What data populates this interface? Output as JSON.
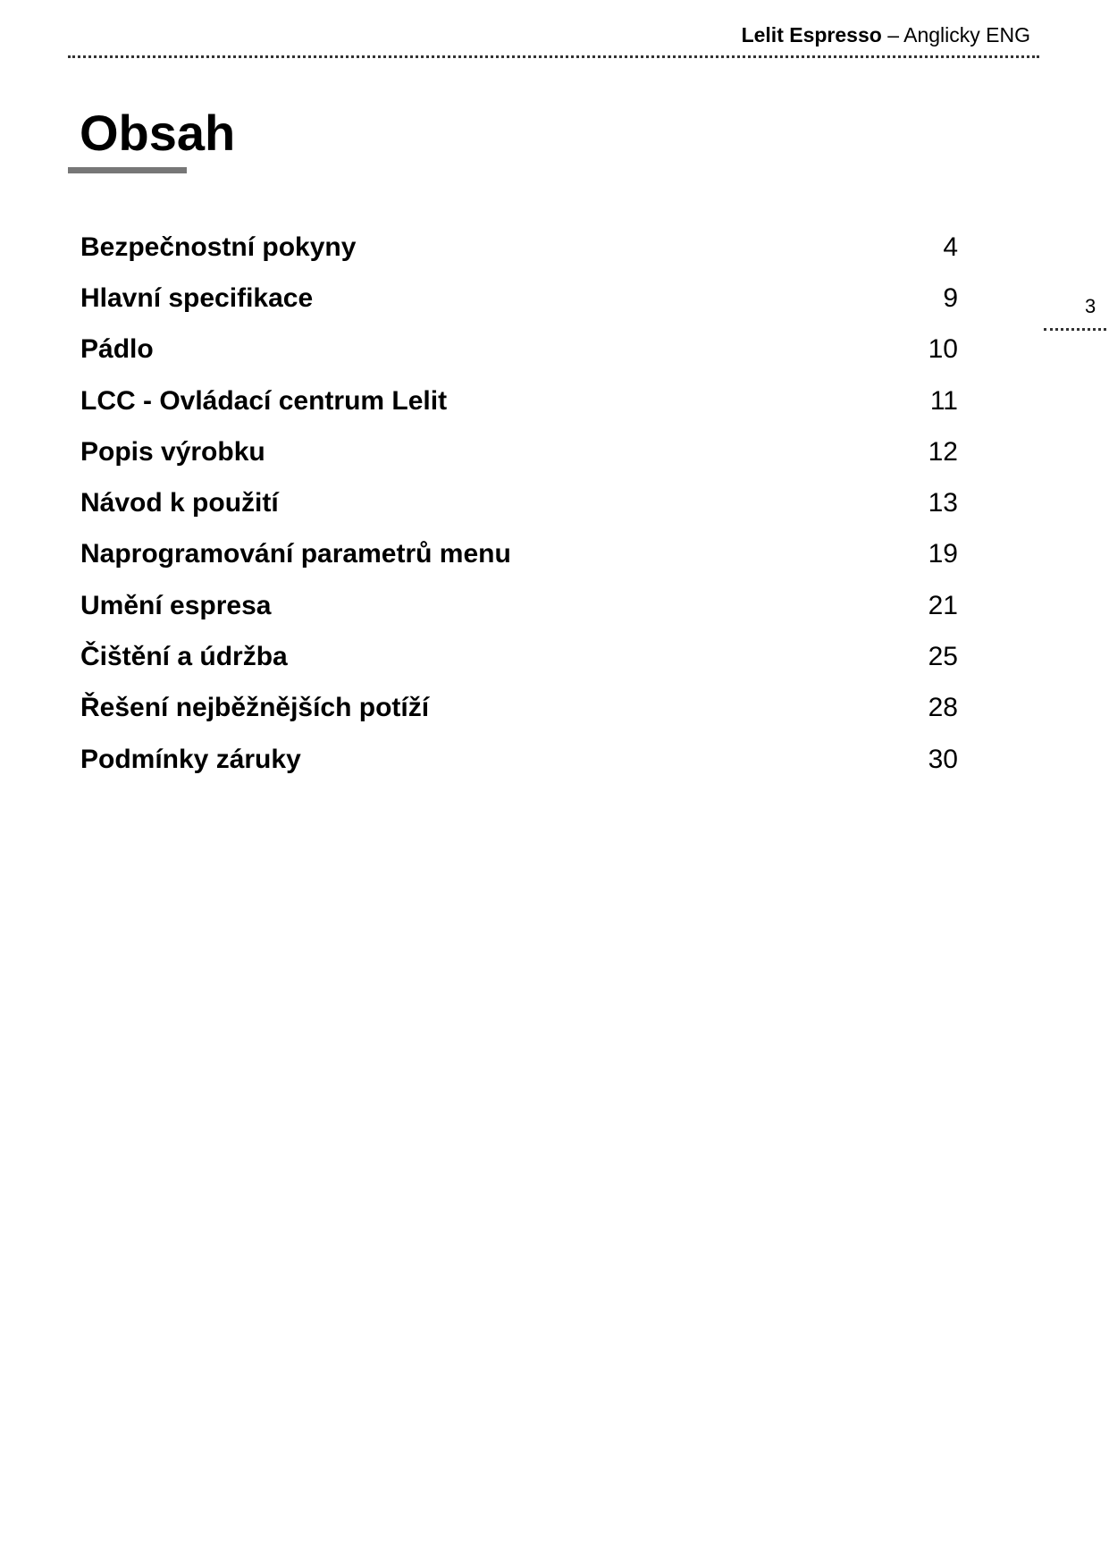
{
  "header": {
    "brand": "Lelit Espresso",
    "separator": " – ",
    "language": "Anglicky ENG"
  },
  "title": "Obsah",
  "toc": [
    {
      "title": "Bezpečnostní pokyny",
      "page": "4"
    },
    {
      "title": "Hlavní specifikace",
      "page": "9"
    },
    {
      "title": "Pádlo",
      "page": "10"
    },
    {
      "title": "LCC - Ovládací centrum Lelit",
      "page": "11"
    },
    {
      "title": "Popis výrobku",
      "page": "12"
    },
    {
      "title": "Návod k použití",
      "page": "13"
    },
    {
      "title": "Naprogramování parametrů menu",
      "page": "19"
    },
    {
      "title": "Umění espresa",
      "page": "21"
    },
    {
      "title": "Čištění a údržba",
      "page": "25"
    },
    {
      "title": "Řešení nejběžnějších potíží",
      "page": "28"
    },
    {
      "title": "Podmínky záruky",
      "page": "30"
    }
  ],
  "page_number": "3"
}
